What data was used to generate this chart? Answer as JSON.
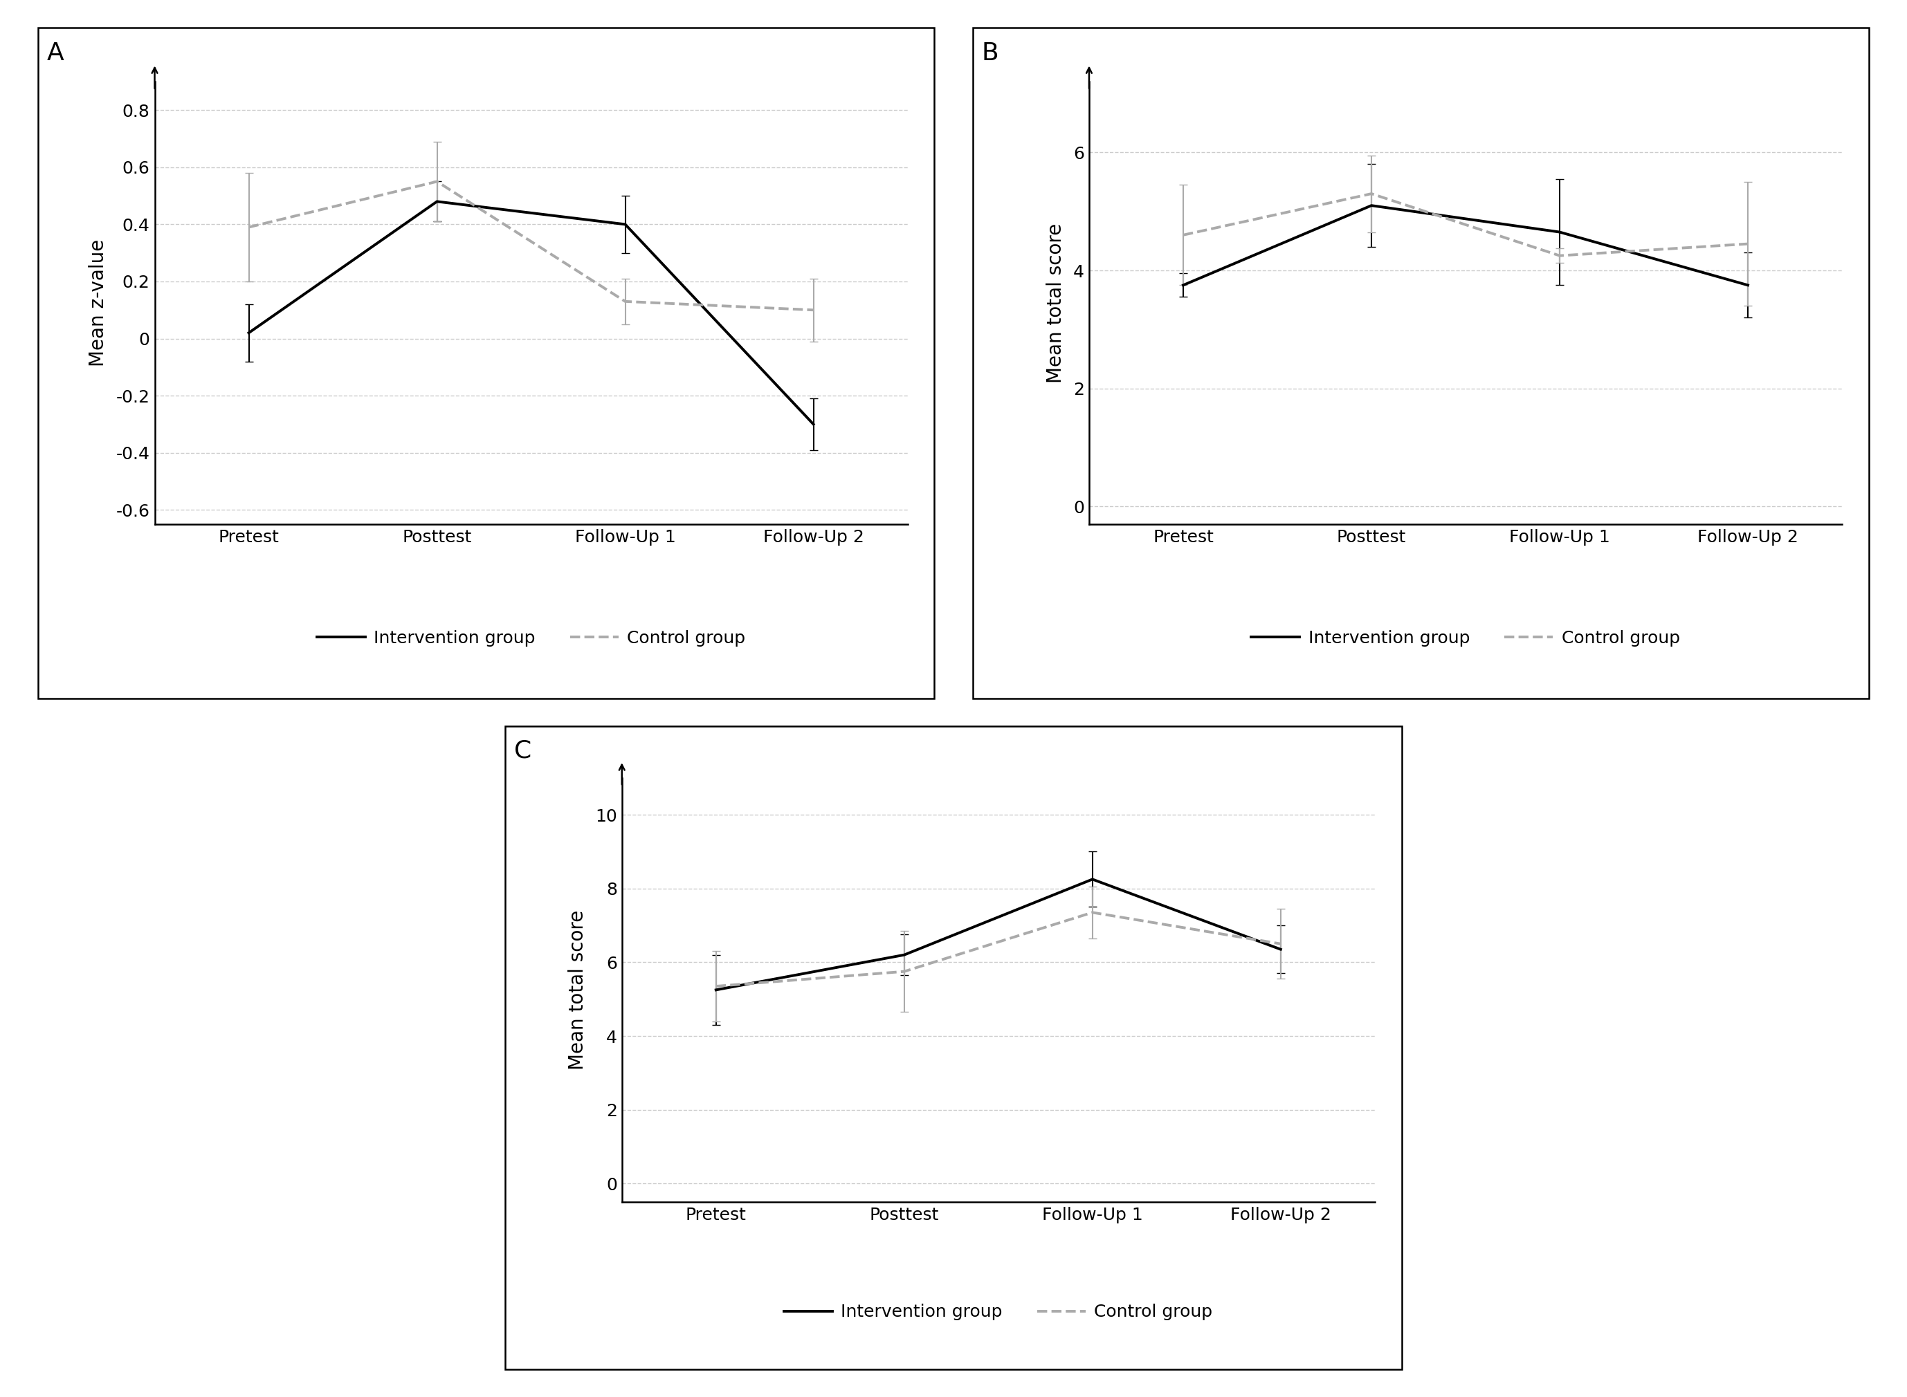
{
  "x_labels": [
    "Pretest",
    "Posttest",
    "Follow-Up 1",
    "Follow-Up 2"
  ],
  "panel_A": {
    "label": "A",
    "ylabel": "Mean z-value",
    "ylim": [
      -0.65,
      0.9
    ],
    "yticks": [
      -0.6,
      -0.4,
      -0.2,
      0.0,
      0.2,
      0.4,
      0.6,
      0.8
    ],
    "ytick_labels": [
      "-0.6",
      "-0.4",
      "-0.2",
      "0",
      "0.2",
      "0.4",
      "0.6",
      "0.8"
    ],
    "ig_mean": [
      0.02,
      0.48,
      0.4,
      -0.3
    ],
    "ig_se": [
      0.1,
      0.07,
      0.1,
      0.09
    ],
    "cg_mean": [
      0.39,
      0.55,
      0.13,
      0.1
    ],
    "cg_se": [
      0.19,
      0.14,
      0.08,
      0.11
    ]
  },
  "panel_B": {
    "label": "B",
    "ylabel": "Mean total score",
    "ylim": [
      -0.3,
      7.2
    ],
    "yticks": [
      0,
      2,
      4,
      6
    ],
    "ytick_labels": [
      "0",
      "2",
      "4",
      "6"
    ],
    "ig_mean": [
      3.75,
      5.1,
      4.65,
      3.75
    ],
    "ig_se": [
      0.2,
      0.7,
      0.9,
      0.55
    ],
    "cg_mean": [
      4.6,
      5.3,
      4.25,
      4.45
    ],
    "cg_se": [
      0.85,
      0.65,
      0.12,
      1.05
    ]
  },
  "panel_C": {
    "label": "C",
    "ylabel": "Mean total score",
    "ylim": [
      -0.5,
      11.0
    ],
    "yticks": [
      0,
      2,
      4,
      6,
      8,
      10
    ],
    "ytick_labels": [
      "0",
      "2",
      "4",
      "6",
      "8",
      "10"
    ],
    "ig_mean": [
      5.25,
      6.2,
      8.25,
      6.35
    ],
    "ig_se": [
      0.95,
      0.55,
      0.75,
      0.65
    ],
    "cg_mean": [
      5.35,
      5.75,
      7.35,
      6.5
    ],
    "cg_se": [
      0.95,
      1.1,
      0.7,
      0.95
    ]
  },
  "ig_color": "#000000",
  "cg_color": "#aaaaaa",
  "ig_linestyle": "-",
  "cg_linestyle": "--",
  "ig_linewidth": 2.8,
  "cg_linewidth": 2.8,
  "ig_label": "Intervention group",
  "cg_label": "Control group",
  "grid_color": "#cccccc",
  "grid_linestyle": "--",
  "grid_linewidth": 1.0,
  "capsize": 4,
  "elinewidth": 1.5,
  "background_color": "#ffffff",
  "panel_facecolor": "#ffffff",
  "spine_color": "#000000",
  "tick_fontsize": 18,
  "label_fontsize": 20,
  "legend_fontsize": 18,
  "panel_label_fontsize": 26
}
